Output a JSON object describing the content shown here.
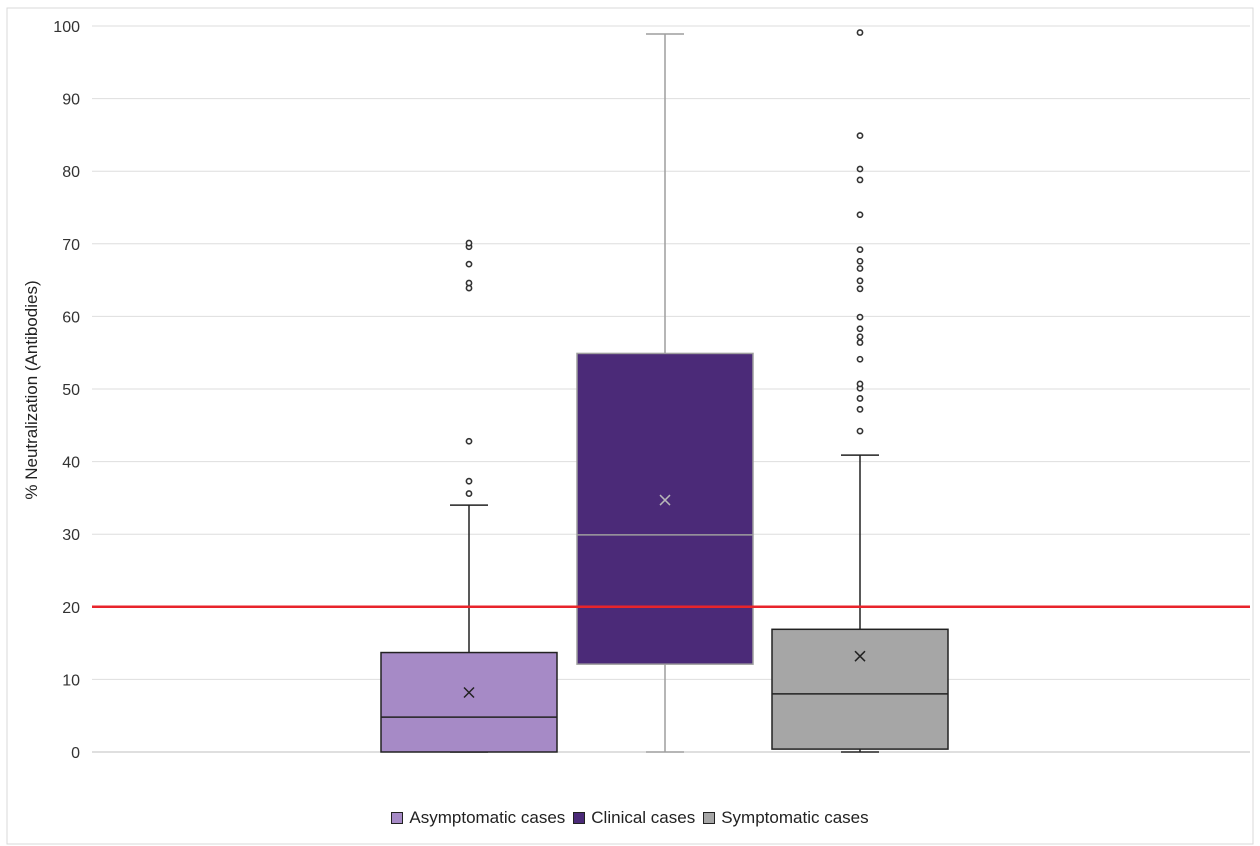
{
  "chart_data": {
    "type": "box",
    "title": "",
    "xlabel": "",
    "ylabel": "% Neutralization (Antibodies)",
    "ylim": [
      0,
      100
    ],
    "yticks": [
      0,
      10,
      20,
      30,
      40,
      50,
      60,
      70,
      80,
      90,
      100
    ],
    "grid": true,
    "legend_position": "bottom",
    "reference_line": {
      "y": 20,
      "color": "#e8242b"
    },
    "series": [
      {
        "name": "Asymptomatic cases",
        "color": "#a68ac6",
        "edge_color": "#222222",
        "whisker_color": "#222222",
        "median_color": "#222222",
        "mean_color": "#222222",
        "min": 0,
        "q1": 0,
        "median": 4.8,
        "q3": 13.7,
        "max": 34,
        "mean": 8.2,
        "outliers": [
          35.6,
          37.3,
          42.8,
          63.9,
          64.6,
          67.2,
          69.6,
          70.1
        ]
      },
      {
        "name": "Clinical cases",
        "color": "#4b2a78",
        "edge_color": "#9e9e9e",
        "whisker_color": "#9e9e9e",
        "median_color": "#9e9e9e",
        "mean_color": "#b8b8b8",
        "min": 0,
        "q1": 12.1,
        "median": 29.9,
        "q3": 54.9,
        "max": 98.9,
        "mean": 34.7,
        "outliers": []
      },
      {
        "name": "Symptomatic cases",
        "color": "#a6a6a6",
        "edge_color": "#222222",
        "whisker_color": "#222222",
        "median_color": "#222222",
        "mean_color": "#222222",
        "min": 0,
        "q1": 0.4,
        "median": 8,
        "q3": 16.9,
        "max": 40.9,
        "mean": 13.2,
        "outliers": [
          44.2,
          47.2,
          48.7,
          50.1,
          50.7,
          54.1,
          56.4,
          57.2,
          58.3,
          59.9,
          63.8,
          64.9,
          66.6,
          67.6,
          69.2,
          74,
          78.8,
          80.3,
          84.9,
          99.1
        ]
      }
    ]
  }
}
